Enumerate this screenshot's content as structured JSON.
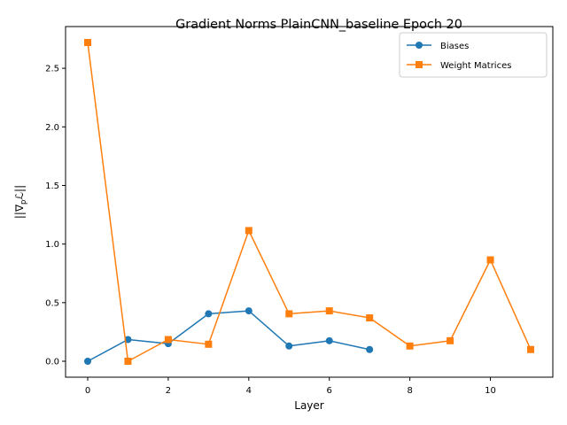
{
  "chart_data": {
    "type": "line",
    "title": "Gradient Norms PlainCNN_baseline Epoch 20",
    "xlabel": "Layer",
    "ylabel": "||∇",
    "ylabel_sub": "p",
    "ylabel_tail": "ℒ||",
    "xlim": [
      -0.55,
      11.55
    ],
    "ylim": [
      -0.136,
      2.856
    ],
    "xticks": [
      0,
      2,
      4,
      6,
      8,
      10
    ],
    "yticks": [
      0.0,
      0.5,
      1.0,
      1.5,
      2.0,
      2.5
    ],
    "grid": false,
    "legend_position": "top-right",
    "series": [
      {
        "name": "Biases",
        "color": "#1f77b4",
        "marker": "circle",
        "x": [
          0,
          1,
          2,
          3,
          4,
          5,
          6,
          7
        ],
        "y": [
          0.0,
          0.185,
          0.15,
          0.405,
          0.43,
          0.13,
          0.175,
          0.1
        ]
      },
      {
        "name": "Weight Matrices",
        "color": "#ff7f0e",
        "marker": "square",
        "x": [
          0,
          1,
          2,
          3,
          4,
          5,
          6,
          7,
          8,
          9,
          10,
          11
        ],
        "y": [
          2.72,
          0.0,
          0.185,
          0.145,
          1.115,
          0.405,
          0.43,
          0.37,
          0.13,
          0.175,
          0.865,
          0.1
        ]
      }
    ]
  }
}
